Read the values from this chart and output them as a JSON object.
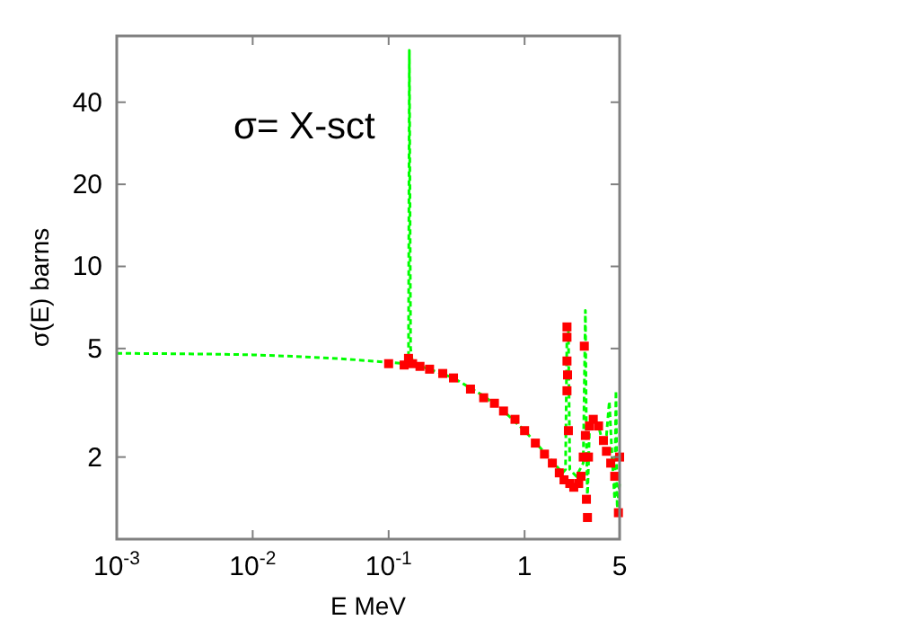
{
  "chart_data": {
    "type": "line",
    "xlabel": "E MeV",
    "ylabel": "σ(E) barns",
    "annotations": [
      "σ= X-sct"
    ],
    "log": "xy",
    "grid": false,
    "xlim": [
      0.001,
      5
    ],
    "xticks": [
      {
        "value": 0.001,
        "label": "10$^{-3}$"
      },
      {
        "value": 0.01,
        "label": "10$^{-2}$"
      },
      {
        "value": 0.1,
        "label": "10$^{-1}$"
      },
      1,
      5
    ],
    "ylim": [
      1,
      70
    ],
    "yticks": [
      2,
      5,
      10,
      20,
      40
    ],
    "series": [
      {
        "color": "#00ff00",
        "line_style": "dashed",
        "marker": "none",
        "x": [
          0.001,
          0.002,
          0.005,
          0.01,
          0.02,
          0.05,
          0.1,
          0.13,
          0.14,
          0.142,
          0.145,
          0.15,
          0.2,
          0.3,
          0.5,
          0.7,
          1,
          1.5,
          1.9,
          2.0,
          2.05,
          2.1,
          2.15,
          2.4,
          2.7,
          2.8,
          2.85,
          2.9,
          3.0,
          3.2,
          3.5,
          3.8,
          4.0,
          4.2,
          4.4,
          4.6,
          4.7,
          4.8,
          5
        ],
        "values": [
          4.8,
          4.79,
          4.77,
          4.74,
          4.68,
          4.57,
          4.45,
          4.4,
          4.6,
          62,
          5,
          4.4,
          4.2,
          3.9,
          3.35,
          2.95,
          2.5,
          2.0,
          1.75,
          1.8,
          5.8,
          5.8,
          1.8,
          1.7,
          1.9,
          6.9,
          2.3,
          1.4,
          2.5,
          2.8,
          2.6,
          2.2,
          2.4,
          3.2,
          2.0,
          1.4,
          3.5,
          1.3,
          1.6
        ]
      },
      {
        "type": "scatter",
        "color": "#ff0000",
        "marker": "square",
        "x": [
          0.1,
          0.13,
          0.14,
          0.15,
          0.17,
          0.2,
          0.25,
          0.3,
          0.4,
          0.5,
          0.6,
          0.7,
          0.85,
          1,
          1.2,
          1.4,
          1.6,
          1.8,
          1.95,
          2.05,
          2.05,
          2.05,
          2.05,
          2.07,
          2.1,
          2.15,
          2.3,
          2.5,
          2.6,
          2.7,
          2.75,
          2.8,
          2.85,
          2.9,
          2.95,
          3.0,
          3.2,
          3.5,
          3.8,
          4.0,
          4.3,
          4.6,
          4.9,
          5
        ],
        "values": [
          4.4,
          4.35,
          4.6,
          4.4,
          4.3,
          4.2,
          4.05,
          3.9,
          3.55,
          3.3,
          3.15,
          2.95,
          2.75,
          2.5,
          2.25,
          2.05,
          1.9,
          1.75,
          1.65,
          6.0,
          5.5,
          4.5,
          3.5,
          4.0,
          2.5,
          1.6,
          1.55,
          1.6,
          1.7,
          2.0,
          5.1,
          2.4,
          1.4,
          1.2,
          2.0,
          2.6,
          2.75,
          2.6,
          2.3,
          2.1,
          1.9,
          1.7,
          1.25,
          2.0
        ]
      }
    ]
  }
}
